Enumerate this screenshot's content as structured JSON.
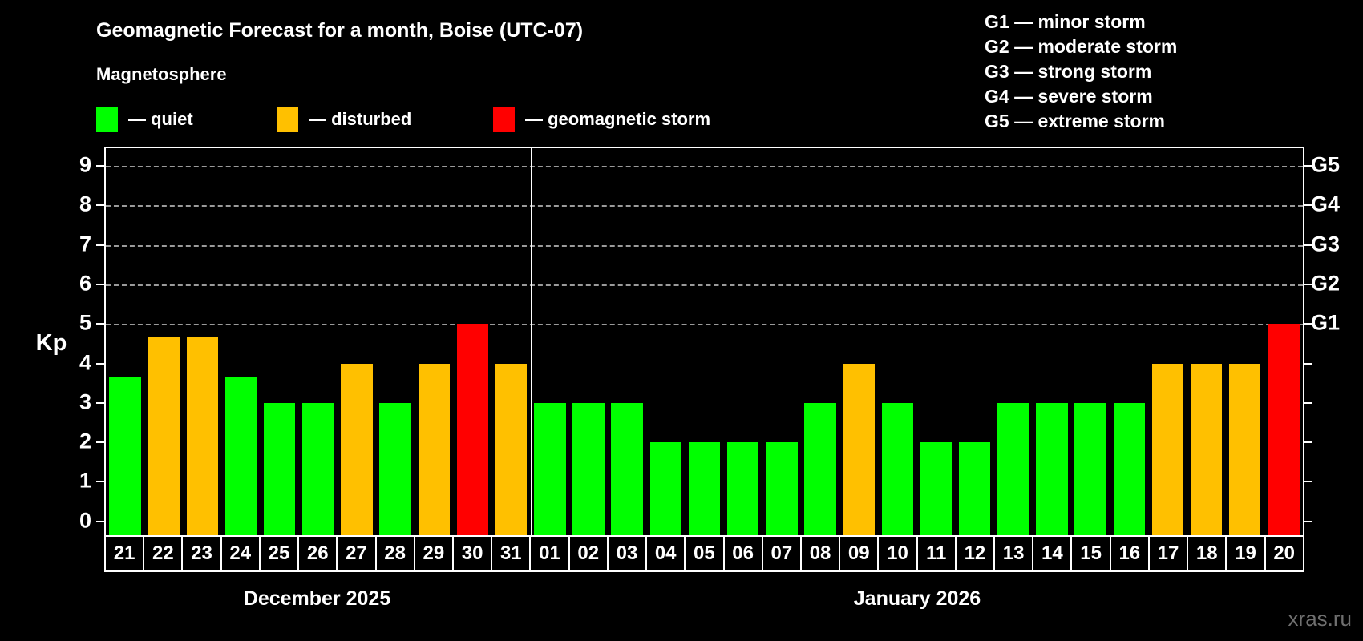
{
  "header": {
    "title": "Geomagnetic Forecast for a month, Boise (UTC-07)",
    "subtitle": "Magnetosphere"
  },
  "legend": [
    {
      "label": "— quiet",
      "color": "#00ff00"
    },
    {
      "label": "— disturbed",
      "color": "#ffc000"
    },
    {
      "label": "— geomagnetic storm",
      "color": "#ff0000"
    }
  ],
  "g_scale": [
    "G1 — minor storm",
    "G2 — moderate storm",
    "G3 — strong storm",
    "G4 — severe storm",
    "G5 — extreme storm"
  ],
  "watermark": "xras.ru",
  "chart_data": {
    "type": "bar",
    "ylabel": "Kp",
    "ylim": [
      0,
      9.4
    ],
    "yticks": [
      0,
      1,
      2,
      3,
      4,
      5,
      6,
      7,
      8,
      9
    ],
    "grid_kp_levels": [
      5,
      6,
      7,
      8,
      9
    ],
    "right_axis": [
      {
        "kp": 5,
        "label": "G1"
      },
      {
        "kp": 6,
        "label": "G2"
      },
      {
        "kp": 7,
        "label": "G3"
      },
      {
        "kp": 8,
        "label": "G4"
      },
      {
        "kp": 9,
        "label": "G5"
      }
    ],
    "status_colors": {
      "quiet": "#00ff00",
      "disturbed": "#ffc000",
      "storm": "#ff0000"
    },
    "series": [
      {
        "month": "December 2025",
        "days": [
          {
            "day": "21",
            "kp": 3.67,
            "status": "quiet"
          },
          {
            "day": "22",
            "kp": 4.67,
            "status": "disturbed"
          },
          {
            "day": "23",
            "kp": 4.67,
            "status": "disturbed"
          },
          {
            "day": "24",
            "kp": 3.67,
            "status": "quiet"
          },
          {
            "day": "25",
            "kp": 3,
            "status": "quiet"
          },
          {
            "day": "26",
            "kp": 3,
            "status": "quiet"
          },
          {
            "day": "27",
            "kp": 4,
            "status": "disturbed"
          },
          {
            "day": "28",
            "kp": 3,
            "status": "quiet"
          },
          {
            "day": "29",
            "kp": 4,
            "status": "disturbed"
          },
          {
            "day": "30",
            "kp": 5,
            "status": "storm"
          },
          {
            "day": "31",
            "kp": 4,
            "status": "disturbed"
          }
        ]
      },
      {
        "month": "January 2026",
        "days": [
          {
            "day": "01",
            "kp": 3,
            "status": "quiet"
          },
          {
            "day": "02",
            "kp": 3,
            "status": "quiet"
          },
          {
            "day": "03",
            "kp": 3,
            "status": "quiet"
          },
          {
            "day": "04",
            "kp": 2,
            "status": "quiet"
          },
          {
            "day": "05",
            "kp": 2,
            "status": "quiet"
          },
          {
            "day": "06",
            "kp": 2,
            "status": "quiet"
          },
          {
            "day": "07",
            "kp": 2,
            "status": "quiet"
          },
          {
            "day": "08",
            "kp": 3,
            "status": "quiet"
          },
          {
            "day": "09",
            "kp": 4,
            "status": "disturbed"
          },
          {
            "day": "10",
            "kp": 3,
            "status": "quiet"
          },
          {
            "day": "11",
            "kp": 2,
            "status": "quiet"
          },
          {
            "day": "12",
            "kp": 2,
            "status": "quiet"
          },
          {
            "day": "13",
            "kp": 3,
            "status": "quiet"
          },
          {
            "day": "14",
            "kp": 3,
            "status": "quiet"
          },
          {
            "day": "15",
            "kp": 3,
            "status": "quiet"
          },
          {
            "day": "16",
            "kp": 3,
            "status": "quiet"
          },
          {
            "day": "17",
            "kp": 4,
            "status": "disturbed"
          },
          {
            "day": "18",
            "kp": 4,
            "status": "disturbed"
          },
          {
            "day": "19",
            "kp": 4,
            "status": "disturbed"
          },
          {
            "day": "20",
            "kp": 5,
            "status": "storm"
          }
        ]
      }
    ]
  }
}
